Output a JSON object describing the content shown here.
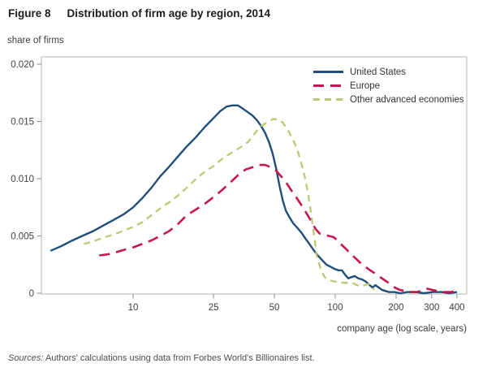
{
  "header": {
    "figure_label": "Figure 8",
    "title": "Distribution of firm age by region, 2014"
  },
  "footer": {
    "prefix": "Sources:",
    "text": " Authors' calculations using data from Forbes World's Billionaires list."
  },
  "chart_data": {
    "type": "line",
    "title": "Distribution of firm age by region, 2014",
    "xlabel": "company age (log scale, years)",
    "ylabel": "share of firms",
    "x_scale": "log",
    "x_range": [
      3.5,
      447
    ],
    "ylim": [
      0,
      0.02
    ],
    "grid": false,
    "legend_position": "top-right-inside",
    "frame_color": "#b5b5b5",
    "tick_color": "#8f8f8f",
    "x_ticks": [
      {
        "value": 10,
        "label": "10"
      },
      {
        "value": 25,
        "label": "25"
      },
      {
        "value": 50,
        "label": "50"
      },
      {
        "value": 100,
        "label": "100"
      },
      {
        "value": 200,
        "label": "200"
      },
      {
        "value": 300,
        "label": "300"
      },
      {
        "value": 400,
        "label": "400"
      }
    ],
    "y_ticks": [
      {
        "value": 0,
        "label": "0"
      },
      {
        "value": 0.005,
        "label": "0.005"
      },
      {
        "value": 0.01,
        "label": "0.010"
      },
      {
        "value": 0.015,
        "label": "0.015"
      },
      {
        "value": 0.02,
        "label": "0.020"
      }
    ],
    "series": [
      {
        "name": "United States",
        "color": "#1f4e79",
        "dash": null,
        "width": 2.4,
        "points": [
          [
            3.9,
            0.0037
          ],
          [
            4.4,
            0.0041
          ],
          [
            5,
            0.0046
          ],
          [
            5.6,
            0.005
          ],
          [
            6.3,
            0.0054
          ],
          [
            7.1,
            0.0059
          ],
          [
            8,
            0.0064
          ],
          [
            9,
            0.0069
          ],
          [
            10,
            0.0075
          ],
          [
            11.1,
            0.0083
          ],
          [
            12.3,
            0.0092
          ],
          [
            13.6,
            0.0102
          ],
          [
            15,
            0.011
          ],
          [
            16.6,
            0.0119
          ],
          [
            18.4,
            0.0128
          ],
          [
            20.4,
            0.0136
          ],
          [
            22.6,
            0.0145
          ],
          [
            25,
            0.0153
          ],
          [
            27,
            0.0159
          ],
          [
            29,
            0.0163
          ],
          [
            31,
            0.0164
          ],
          [
            33,
            0.0164
          ],
          [
            35,
            0.0161
          ],
          [
            37,
            0.0158
          ],
          [
            39,
            0.0155
          ],
          [
            41,
            0.0151
          ],
          [
            43,
            0.0146
          ],
          [
            45,
            0.014
          ],
          [
            47,
            0.0132
          ],
          [
            49,
            0.0122
          ],
          [
            51,
            0.0109
          ],
          [
            53,
            0.0094
          ],
          [
            55,
            0.0081
          ],
          [
            57,
            0.0072
          ],
          [
            59.5,
            0.0066
          ],
          [
            62,
            0.0061
          ],
          [
            65,
            0.0057
          ],
          [
            68,
            0.0053
          ],
          [
            71,
            0.0048
          ],
          [
            74.5,
            0.0043
          ],
          [
            78,
            0.0038
          ],
          [
            82,
            0.0033
          ],
          [
            86,
            0.0029
          ],
          [
            90.5,
            0.0025
          ],
          [
            95,
            0.0023
          ],
          [
            100,
            0.0021
          ],
          [
            104,
            0.002
          ],
          [
            108,
            0.002
          ],
          [
            112,
            0.0016
          ],
          [
            116,
            0.0013
          ],
          [
            120,
            0.0014
          ],
          [
            125,
            0.0015
          ],
          [
            130,
            0.0013
          ],
          [
            136,
            0.0012
          ],
          [
            142,
            0.001
          ],
          [
            148,
            0.0007
          ],
          [
            153,
            0.0005
          ],
          [
            158,
            0.0007
          ],
          [
            164,
            0.0005
          ],
          [
            170,
            0.0003
          ],
          [
            177,
            0.0002
          ],
          [
            185,
            0.0001
          ],
          [
            196,
            0.0001
          ],
          [
            210,
            0
          ],
          [
            228,
            0.0001
          ],
          [
            250,
            0.0001
          ],
          [
            275,
            0
          ],
          [
            305,
            0.0001
          ],
          [
            335,
            0.0001
          ],
          [
            368,
            0
          ],
          [
            400,
            0.0001
          ]
        ]
      },
      {
        "name": "Europe",
        "color": "#c5174e",
        "dash": "13,8",
        "width": 2.6,
        "points": [
          [
            6.8,
            0.0033
          ],
          [
            7.5,
            0.0034
          ],
          [
            8.3,
            0.0036
          ],
          [
            9.1,
            0.0038
          ],
          [
            10,
            0.004
          ],
          [
            11.1,
            0.0043
          ],
          [
            12.3,
            0.0046
          ],
          [
            13.6,
            0.005
          ],
          [
            15,
            0.0054
          ],
          [
            16.6,
            0.006
          ],
          [
            18.4,
            0.0068
          ],
          [
            20.4,
            0.0073
          ],
          [
            22.6,
            0.0078
          ],
          [
            25,
            0.0084
          ],
          [
            27.5,
            0.009
          ],
          [
            30,
            0.0096
          ],
          [
            33,
            0.0103
          ],
          [
            36,
            0.0108
          ],
          [
            39,
            0.011
          ],
          [
            42,
            0.0112
          ],
          [
            45,
            0.0112
          ],
          [
            48,
            0.011
          ],
          [
            51,
            0.0107
          ],
          [
            54,
            0.0102
          ],
          [
            57,
            0.0097
          ],
          [
            60,
            0.0091
          ],
          [
            64,
            0.0084
          ],
          [
            68,
            0.0077
          ],
          [
            72,
            0.007
          ],
          [
            76,
            0.0063
          ],
          [
            80,
            0.0056
          ],
          [
            84,
            0.0052
          ],
          [
            88,
            0.0051
          ],
          [
            93,
            0.005
          ],
          [
            98,
            0.0049
          ],
          [
            103,
            0.0046
          ],
          [
            108,
            0.0042
          ],
          [
            114,
            0.0038
          ],
          [
            120,
            0.0034
          ],
          [
            127,
            0.003
          ],
          [
            134,
            0.0026
          ],
          [
            141,
            0.0023
          ],
          [
            149,
            0.002
          ],
          [
            158,
            0.0017
          ],
          [
            167,
            0.0014
          ],
          [
            177,
            0.0011
          ],
          [
            187,
            0.0008
          ],
          [
            197,
            0.0005
          ],
          [
            208,
            0.0003
          ],
          [
            220,
            0.0002
          ],
          [
            235,
            0.0001
          ],
          [
            252,
            0.0001
          ],
          [
            268,
            0.0002
          ],
          [
            285,
            0.0004
          ],
          [
            300,
            0.0003
          ],
          [
            320,
            0.0002
          ],
          [
            345,
            0.0001
          ],
          [
            372,
            0.0001
          ],
          [
            400,
            0.0002
          ]
        ]
      },
      {
        "name": "Other advanced economies",
        "color": "#bdc873",
        "dash": "8,6",
        "width": 2.3,
        "points": [
          [
            5.7,
            0.0043
          ],
          [
            6.3,
            0.0045
          ],
          [
            7,
            0.0048
          ],
          [
            7.9,
            0.0051
          ],
          [
            8.8,
            0.0054
          ],
          [
            10,
            0.0058
          ],
          [
            11.1,
            0.0062
          ],
          [
            12.3,
            0.0068
          ],
          [
            13.6,
            0.0074
          ],
          [
            15,
            0.0079
          ],
          [
            16.6,
            0.0085
          ],
          [
            18.4,
            0.0092
          ],
          [
            20.8,
            0.0101
          ],
          [
            23,
            0.0107
          ],
          [
            25,
            0.0111
          ],
          [
            27,
            0.0116
          ],
          [
            29,
            0.012
          ],
          [
            31,
            0.0123
          ],
          [
            33,
            0.0126
          ],
          [
            35,
            0.0129
          ],
          [
            37,
            0.0132
          ],
          [
            39,
            0.0137
          ],
          [
            41,
            0.0142
          ],
          [
            43,
            0.0146
          ],
          [
            45,
            0.0148
          ],
          [
            47,
            0.015
          ],
          [
            49,
            0.0152
          ],
          [
            51,
            0.0152
          ],
          [
            53,
            0.0151
          ],
          [
            55,
            0.0149
          ],
          [
            57,
            0.0145
          ],
          [
            59,
            0.0141
          ],
          [
            61,
            0.0136
          ],
          [
            63,
            0.0131
          ],
          [
            65,
            0.0125
          ],
          [
            67,
            0.0117
          ],
          [
            69,
            0.0109
          ],
          [
            71,
            0.01
          ],
          [
            73,
            0.0089
          ],
          [
            75,
            0.0076
          ],
          [
            77,
            0.0062
          ],
          [
            79,
            0.0048
          ],
          [
            81,
            0.0033
          ],
          [
            83,
            0.0026
          ],
          [
            85,
            0.0021
          ],
          [
            88,
            0.0015
          ],
          [
            91,
            0.0012
          ],
          [
            95,
            0.0011
          ],
          [
            100,
            0.001
          ],
          [
            105,
            0.001
          ],
          [
            110,
            0.0009
          ],
          [
            116,
            0.0009
          ],
          [
            122,
            0.0009
          ],
          [
            128,
            0.0007
          ],
          [
            134,
            0.0006
          ],
          [
            140,
            0.0007
          ],
          [
            146,
            0.0008
          ],
          [
            151,
            0.0005
          ],
          [
            156,
            0.0003
          ]
        ]
      }
    ]
  }
}
